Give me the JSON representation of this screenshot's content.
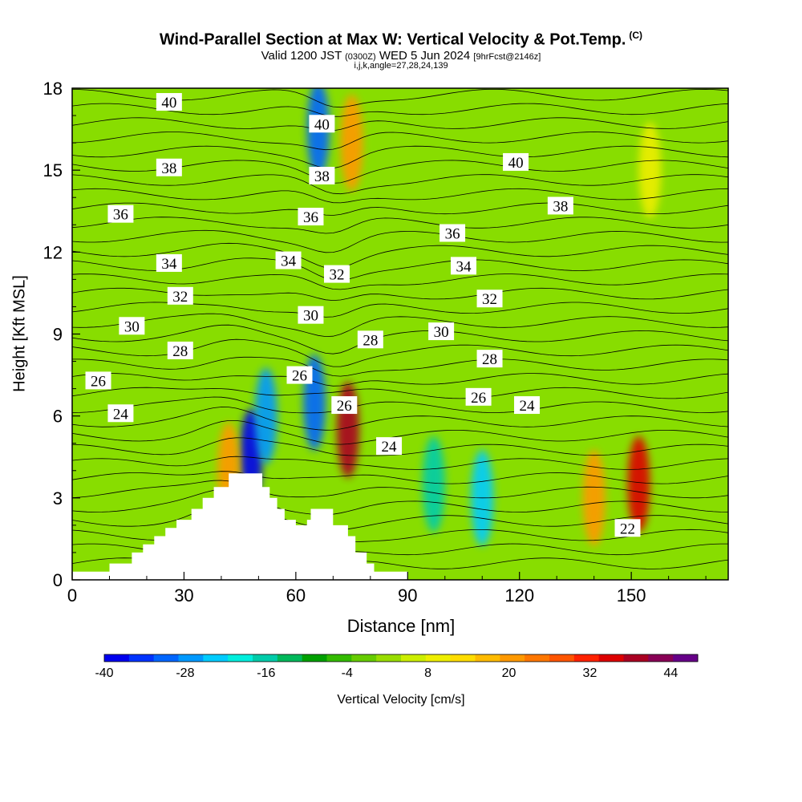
{
  "header": {
    "title": "Wind-Parallel Section at Max W: Vertical Velocity & Pot.Temp.",
    "copyright": "(C)",
    "valid_prefix": "Valid 1200 JST",
    "valid_z": "(0300Z)",
    "valid_date": "WED 5 Jun 2024",
    "forecast": "[9hrFcst@2146z]",
    "indices": "i,j,k,angle=27,28,24,139"
  },
  "chart_data": {
    "type": "heatmap",
    "xlabel": "Distance [nm]",
    "ylabel": "Height [Kft MSL]",
    "xlim": [
      0,
      176
    ],
    "ylim": [
      0,
      18
    ],
    "xticks": [
      0,
      30,
      60,
      90,
      120,
      150
    ],
    "yticks": [
      0,
      3,
      6,
      9,
      12,
      15,
      18
    ],
    "colorbar": {
      "label": "Vertical Velocity [cm/s]",
      "min": -40,
      "max": 48,
      "step": 4,
      "tick_labels": [
        -40,
        -28,
        -16,
        -4,
        8,
        20,
        32,
        44
      ],
      "colors": [
        "#0000ee",
        "#0033ff",
        "#0066ff",
        "#0099ff",
        "#00ccff",
        "#00eedd",
        "#00ccaa",
        "#00b85a",
        "#00a000",
        "#33bb00",
        "#66cc00",
        "#99dd00",
        "#ccee00",
        "#eeee00",
        "#ffdd00",
        "#ffbb00",
        "#ff9900",
        "#ff7700",
        "#ff5500",
        "#ff2200",
        "#dd0000",
        "#aa0022",
        "#880055",
        "#660088"
      ]
    },
    "terrain_profile": [
      [
        0,
        0.3
      ],
      [
        10,
        0.3
      ],
      [
        10,
        0.6
      ],
      [
        16,
        0.6
      ],
      [
        16,
        1.0
      ],
      [
        19,
        1.0
      ],
      [
        19,
        1.3
      ],
      [
        22,
        1.3
      ],
      [
        22,
        1.6
      ],
      [
        25,
        1.6
      ],
      [
        25,
        1.9
      ],
      [
        28,
        1.9
      ],
      [
        28,
        2.2
      ],
      [
        32,
        2.2
      ],
      [
        32,
        2.6
      ],
      [
        35,
        2.6
      ],
      [
        35,
        3.0
      ],
      [
        38,
        3.0
      ],
      [
        38,
        3.4
      ],
      [
        42,
        3.4
      ],
      [
        42,
        3.9
      ],
      [
        51,
        3.9
      ],
      [
        51,
        3.4
      ],
      [
        53,
        3.4
      ],
      [
        53,
        3.0
      ],
      [
        55,
        3.0
      ],
      [
        55,
        2.6
      ],
      [
        57,
        2.6
      ],
      [
        57,
        2.2
      ],
      [
        60,
        2.2
      ],
      [
        60,
        2.0
      ],
      [
        63,
        2.0
      ],
      [
        63,
        2.2
      ],
      [
        64,
        2.2
      ],
      [
        64,
        2.6
      ],
      [
        70,
        2.6
      ],
      [
        70,
        2.0
      ],
      [
        74,
        2.0
      ],
      [
        74,
        1.6
      ],
      [
        76,
        1.6
      ],
      [
        76,
        1.0
      ],
      [
        79,
        1.0
      ],
      [
        79,
        0.6
      ],
      [
        81,
        0.6
      ],
      [
        81,
        0.3
      ],
      [
        90,
        0.3
      ]
    ],
    "w_features": [
      {
        "x": 48,
        "z": 4.5,
        "value": -40
      },
      {
        "x": 52,
        "z": 6.0,
        "value": -28
      },
      {
        "x": 66,
        "z": 16.5,
        "value": -32
      },
      {
        "x": 65,
        "z": 6.5,
        "value": -30
      },
      {
        "x": 74,
        "z": 5.5,
        "value": 44
      },
      {
        "x": 75,
        "z": 16.0,
        "value": 24
      },
      {
        "x": 42,
        "z": 4.0,
        "value": 24
      },
      {
        "x": 110,
        "z": 3.0,
        "value": -24
      },
      {
        "x": 97,
        "z": 3.5,
        "value": -14
      },
      {
        "x": 140,
        "z": 3.0,
        "value": 24
      },
      {
        "x": 152,
        "z": 3.5,
        "value": 40
      },
      {
        "x": 155,
        "z": 15.0,
        "value": 12
      }
    ],
    "theta_contour_labels": [
      {
        "text": "40",
        "x": 26,
        "z": 17.5
      },
      {
        "text": "38",
        "x": 26,
        "z": 15.1
      },
      {
        "text": "36",
        "x": 13,
        "z": 13.4
      },
      {
        "text": "34",
        "x": 26,
        "z": 11.6
      },
      {
        "text": "32",
        "x": 29,
        "z": 10.4
      },
      {
        "text": "30",
        "x": 16,
        "z": 9.3
      },
      {
        "text": "28",
        "x": 29,
        "z": 8.4
      },
      {
        "text": "26",
        "x": 7,
        "z": 7.3
      },
      {
        "text": "24",
        "x": 13,
        "z": 6.1
      },
      {
        "text": "40",
        "x": 67,
        "z": 16.7
      },
      {
        "text": "38",
        "x": 67,
        "z": 14.8
      },
      {
        "text": "36",
        "x": 64,
        "z": 13.3
      },
      {
        "text": "34",
        "x": 58,
        "z": 11.7
      },
      {
        "text": "32",
        "x": 71,
        "z": 11.2
      },
      {
        "text": "30",
        "x": 64,
        "z": 9.7
      },
      {
        "text": "28",
        "x": 80,
        "z": 8.8
      },
      {
        "text": "26",
        "x": 61,
        "z": 7.5
      },
      {
        "text": "26",
        "x": 73,
        "z": 6.4
      },
      {
        "text": "24",
        "x": 85,
        "z": 4.9
      },
      {
        "text": "40",
        "x": 119,
        "z": 15.3
      },
      {
        "text": "38",
        "x": 131,
        "z": 13.7
      },
      {
        "text": "36",
        "x": 102,
        "z": 12.7
      },
      {
        "text": "34",
        "x": 105,
        "z": 11.5
      },
      {
        "text": "32",
        "x": 112,
        "z": 10.3
      },
      {
        "text": "30",
        "x": 99,
        "z": 9.1
      },
      {
        "text": "28",
        "x": 112,
        "z": 8.1
      },
      {
        "text": "26",
        "x": 109,
        "z": 6.7
      },
      {
        "text": "24",
        "x": 122,
        "z": 6.4
      },
      {
        "text": "22",
        "x": 149,
        "z": 1.9
      }
    ]
  },
  "colors": {
    "background_field": "#88dd00",
    "terrain": "#ffffff",
    "contour": "#000000"
  }
}
